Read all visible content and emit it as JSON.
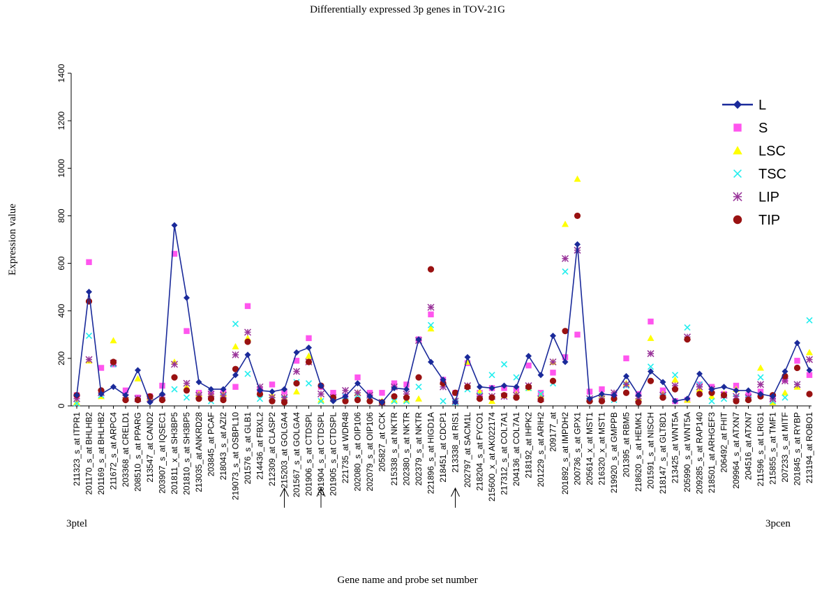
{
  "chart_data": {
    "type": "line",
    "title": "Differentially expressed 3p genes in TOV-21G",
    "xlabel": "Gene name and probe set number",
    "ylabel": "Expression value",
    "ylim": [
      0,
      1400
    ],
    "yticks": [
      "0",
      "200",
      "400",
      "600",
      "800",
      "1000",
      "1200",
      "1400"
    ],
    "grid": false,
    "legend": "top-right",
    "end_labels": {
      "left": "3ptel",
      "right": "3pcen"
    },
    "marked_probes": [
      "215203_at GOLGA4",
      "201904_s_at CTDSPL",
      "213338_at RIS1"
    ],
    "categories": [
      "211323_s_at ITPR1",
      "201170_s_at BHLHB2",
      "201169_s_at BHLHB2",
      "211672_s_at ARPC4",
      "203368_at CRELD1",
      "208510_s_at PPARG",
      "213547_at CAND2",
      "203907_s_at IQSEC1",
      "201811_x_at SH3BP5",
      "201810_s_at SH3BP5",
      "213035_at ANKRD28",
      "203845_at PCAF",
      "218043_s_at AZI2",
      "219073_s_at OSBPL10",
      "201576_s_at GLB1",
      "214436_at FBXL2",
      "212309_at CLASP2",
      "215203_at GOLGA4",
      "201567_s_at GOLGA4",
      "201906_s_at CTDSPL",
      "201904_s_at CTDSPL",
      "201905_s_at CTDSPL",
      "221735_at WDR48",
      "202080_s_at OIP106",
      "202079_s_at OIP106",
      "205827_at CCK",
      "215338_s_at NKTR",
      "202380_s_at NKTR",
      "202379_s_at NKTR",
      "221896_s_at HIGD1A",
      "218451_at CDCP1",
      "213338_at RIS1",
      "202797_at SACM1L",
      "218204_s_at FYCO1",
      "215600_x_at AK022174",
      "217312_s_at COL7A1",
      "204136_at COL7A1",
      "218192_at IHPK2",
      "201229_s_at ARIH2",
      "209177_at",
      "201892_s_at IMPDH2",
      "200736_s_at GPX1",
      "205614_x_at MST1",
      "216320_x_at MST1",
      "219920_s_at GMPPB",
      "201395_at RBM5",
      "218620_s_at HEMK1",
      "201591_s_at NISCH",
      "218147_s_at GLT8D1",
      "213425_at WNT5A",
      "205990_s_at WNT5A",
      "209285_s_at RAP140",
      "218501_at ARHGEF3",
      "206492_at FHIT",
      "209964_s_at ATXN7",
      "204516_at ATXN7",
      "211596_s_at LRIG1",
      "215855_s_at TMF1",
      "207233_s_at MITF",
      "201845_s_at RYBP",
      "213194_at ROBO1"
    ],
    "series": [
      {
        "name": "L",
        "color": "#1a2a9a",
        "marker": "diamond",
        "line": true,
        "values": [
          45,
          480,
          50,
          80,
          45,
          150,
          15,
          50,
          760,
          455,
          100,
          70,
          70,
          130,
          215,
          65,
          60,
          70,
          225,
          245,
          85,
          20,
          40,
          95,
          40,
          15,
          75,
          70,
          280,
          185,
          110,
          15,
          205,
          80,
          75,
          85,
          80,
          210,
          130,
          295,
          185,
          680,
          30,
          50,
          45,
          125,
          45,
          145,
          100,
          20,
          30,
          135,
          70,
          80,
          65,
          65,
          50,
          40,
          145,
          265,
          150
        ]
      },
      {
        "name": "S",
        "color": "#ff55ee",
        "marker": "square",
        "line": false,
        "values": [
          45,
          605,
          160,
          175,
          65,
          35,
          40,
          85,
          640,
          315,
          55,
          50,
          60,
          80,
          420,
          70,
          90,
          60,
          190,
          285,
          80,
          55,
          40,
          120,
          55,
          55,
          95,
          90,
          280,
          385,
          110,
          55,
          180,
          55,
          75,
          75,
          70,
          170,
          55,
          140,
          205,
          300,
          60,
          70,
          40,
          200,
          50,
          355,
          65,
          20,
          25,
          90,
          80,
          50,
          85,
          45,
          60,
          25,
          110,
          190,
          130
        ]
      },
      {
        "name": "LSC",
        "color": "#ffff00",
        "marker": "triangle",
        "line": false,
        "values": [
          15,
          190,
          40,
          275,
          40,
          115,
          35,
          35,
          185,
          80,
          50,
          50,
          50,
          250,
          285,
          60,
          45,
          35,
          60,
          210,
          25,
          30,
          35,
          55,
          30,
          20,
          25,
          25,
          30,
          325,
          100,
          20,
          185,
          60,
          20,
          45,
          50,
          75,
          45,
          185,
          765,
          955,
          30,
          45,
          40,
          95,
          35,
          285,
          50,
          110,
          25,
          70,
          40,
          50,
          70,
          30,
          160,
          15,
          55,
          80,
          225
        ]
      },
      {
        "name": "TSC",
        "color": "#22eeee",
        "marker": "x",
        "line": false,
        "values": [
          10,
          295,
          45,
          175,
          35,
          30,
          30,
          40,
          70,
          35,
          45,
          20,
          40,
          345,
          135,
          30,
          25,
          30,
          100,
          95,
          20,
          30,
          40,
          45,
          30,
          15,
          20,
          20,
          80,
          340,
          20,
          15,
          70,
          45,
          130,
          175,
          120,
          75,
          50,
          95,
          565,
          655,
          25,
          30,
          25,
          85,
          30,
          165,
          40,
          130,
          330,
          90,
          20,
          30,
          35,
          30,
          120,
          20,
          35,
          90,
          360
        ]
      },
      {
        "name": "LIP",
        "color": "#993399",
        "marker": "star",
        "line": false,
        "values": [
          30,
          195,
          55,
          180,
          35,
          30,
          30,
          35,
          175,
          95,
          45,
          50,
          45,
          215,
          310,
          80,
          35,
          35,
          145,
          185,
          50,
          35,
          65,
          55,
          45,
          15,
          80,
          50,
          275,
          415,
          80,
          20,
          85,
          40,
          40,
          40,
          45,
          85,
          30,
          185,
          620,
          655,
          30,
          30,
          55,
          90,
          30,
          220,
          45,
          85,
          290,
          80,
          70,
          45,
          40,
          35,
          90,
          30,
          105,
          90,
          195
        ]
      },
      {
        "name": "TIP",
        "color": "#991111",
        "marker": "circle",
        "line": false,
        "values": [
          45,
          440,
          65,
          185,
          25,
          25,
          40,
          25,
          120,
          65,
          30,
          30,
          25,
          155,
          270,
          50,
          20,
          15,
          95,
          185,
          85,
          35,
          20,
          25,
          20,
          15,
          40,
          35,
          120,
          575,
          95,
          55,
          80,
          30,
          35,
          45,
          35,
          80,
          25,
          105,
          315,
          800,
          20,
          20,
          30,
          55,
          15,
          105,
          35,
          70,
          280,
          50,
          55,
          45,
          20,
          25,
          40,
          45,
          125,
          160,
          50
        ]
      }
    ]
  }
}
